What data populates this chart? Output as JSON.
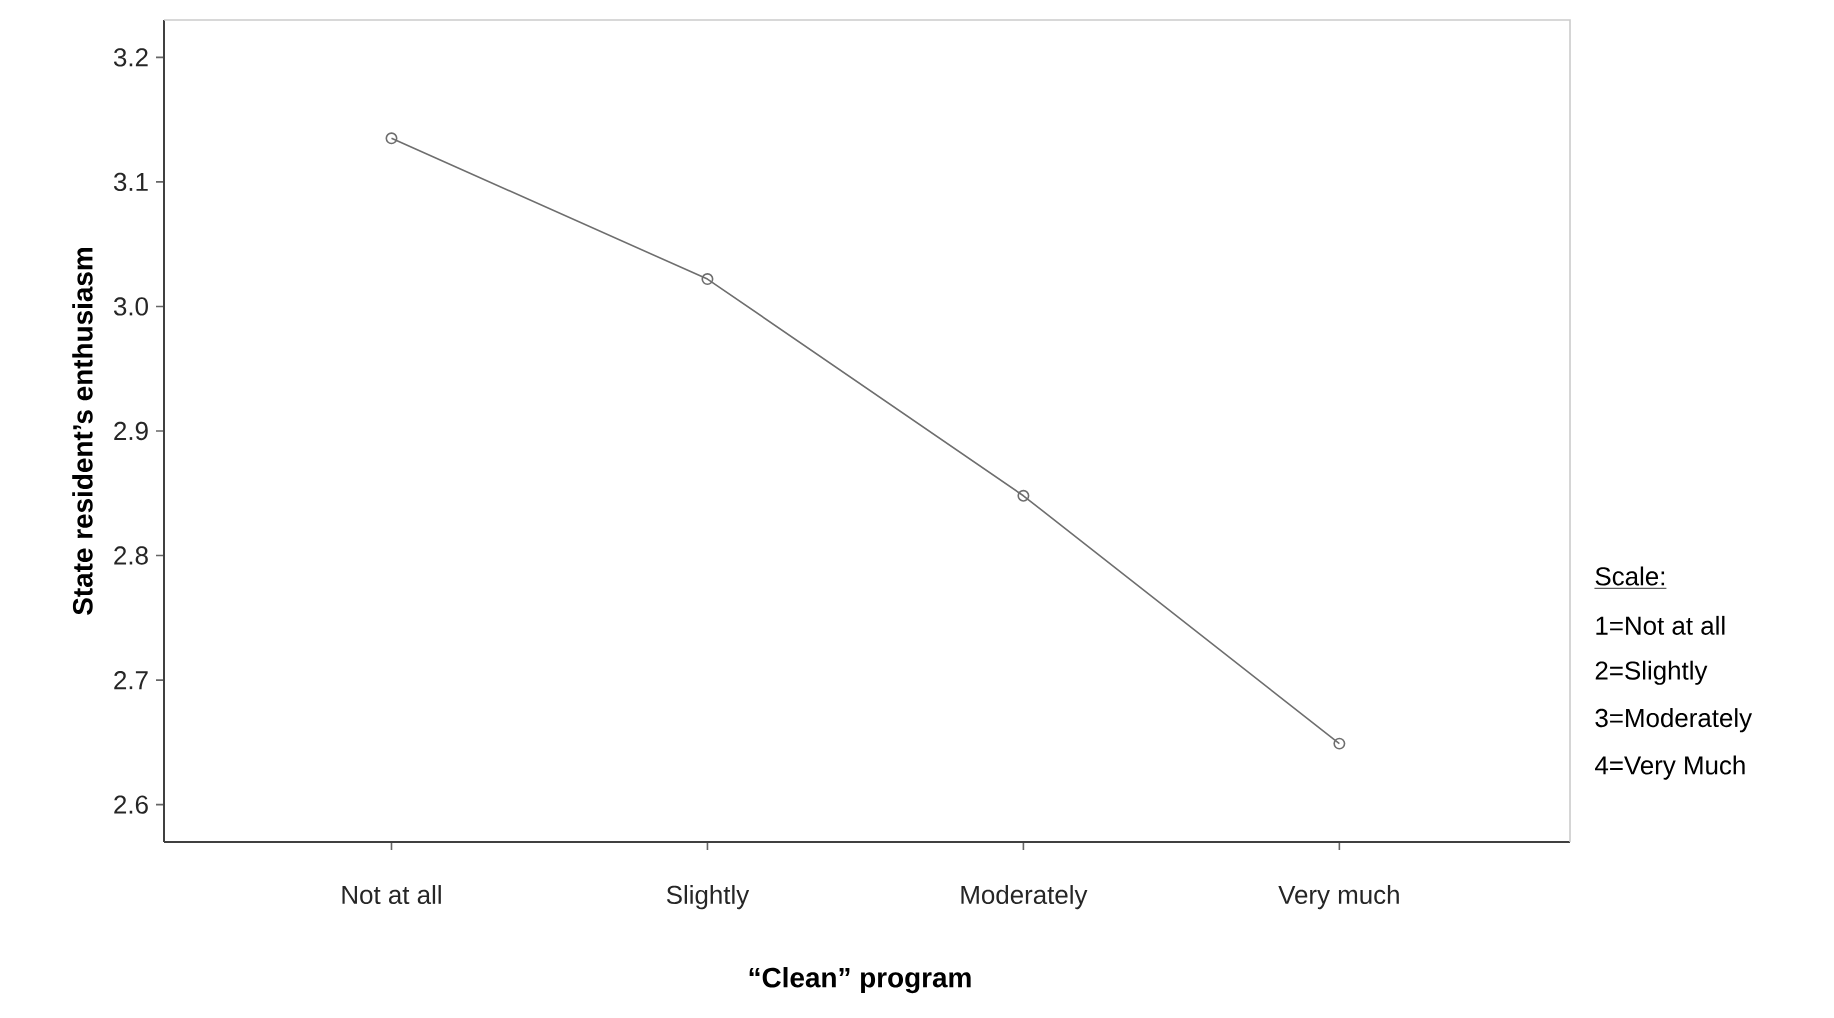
{
  "chart_data": {
    "type": "line",
    "xlabel": "“Clean” program",
    "ylabel": "State resident’s enthusiasm",
    "categories": [
      "Not at all",
      "Slightly",
      "Moderately",
      "Very much"
    ],
    "values": [
      3.135,
      3.022,
      2.848,
      2.649
    ],
    "color": "#6e6e6e",
    "marker": "circle",
    "ylim": [
      2.57,
      3.23
    ],
    "yticks": [
      {
        "value": 2.6,
        "label": "2.6"
      },
      {
        "value": 2.7,
        "label": "2.7"
      },
      {
        "value": 2.8,
        "label": "2.8"
      },
      {
        "value": 2.9,
        "label": "2.9"
      },
      {
        "value": 3.0,
        "label": "3.0"
      },
      {
        "value": 3.1,
        "label": "3.1"
      },
      {
        "value": 3.2,
        "label": "3.2"
      }
    ],
    "annotations": [
      "Scale:",
      "1=Not at all",
      "2=Slightly",
      "3=Moderately",
      "4=Very Much"
    ]
  }
}
